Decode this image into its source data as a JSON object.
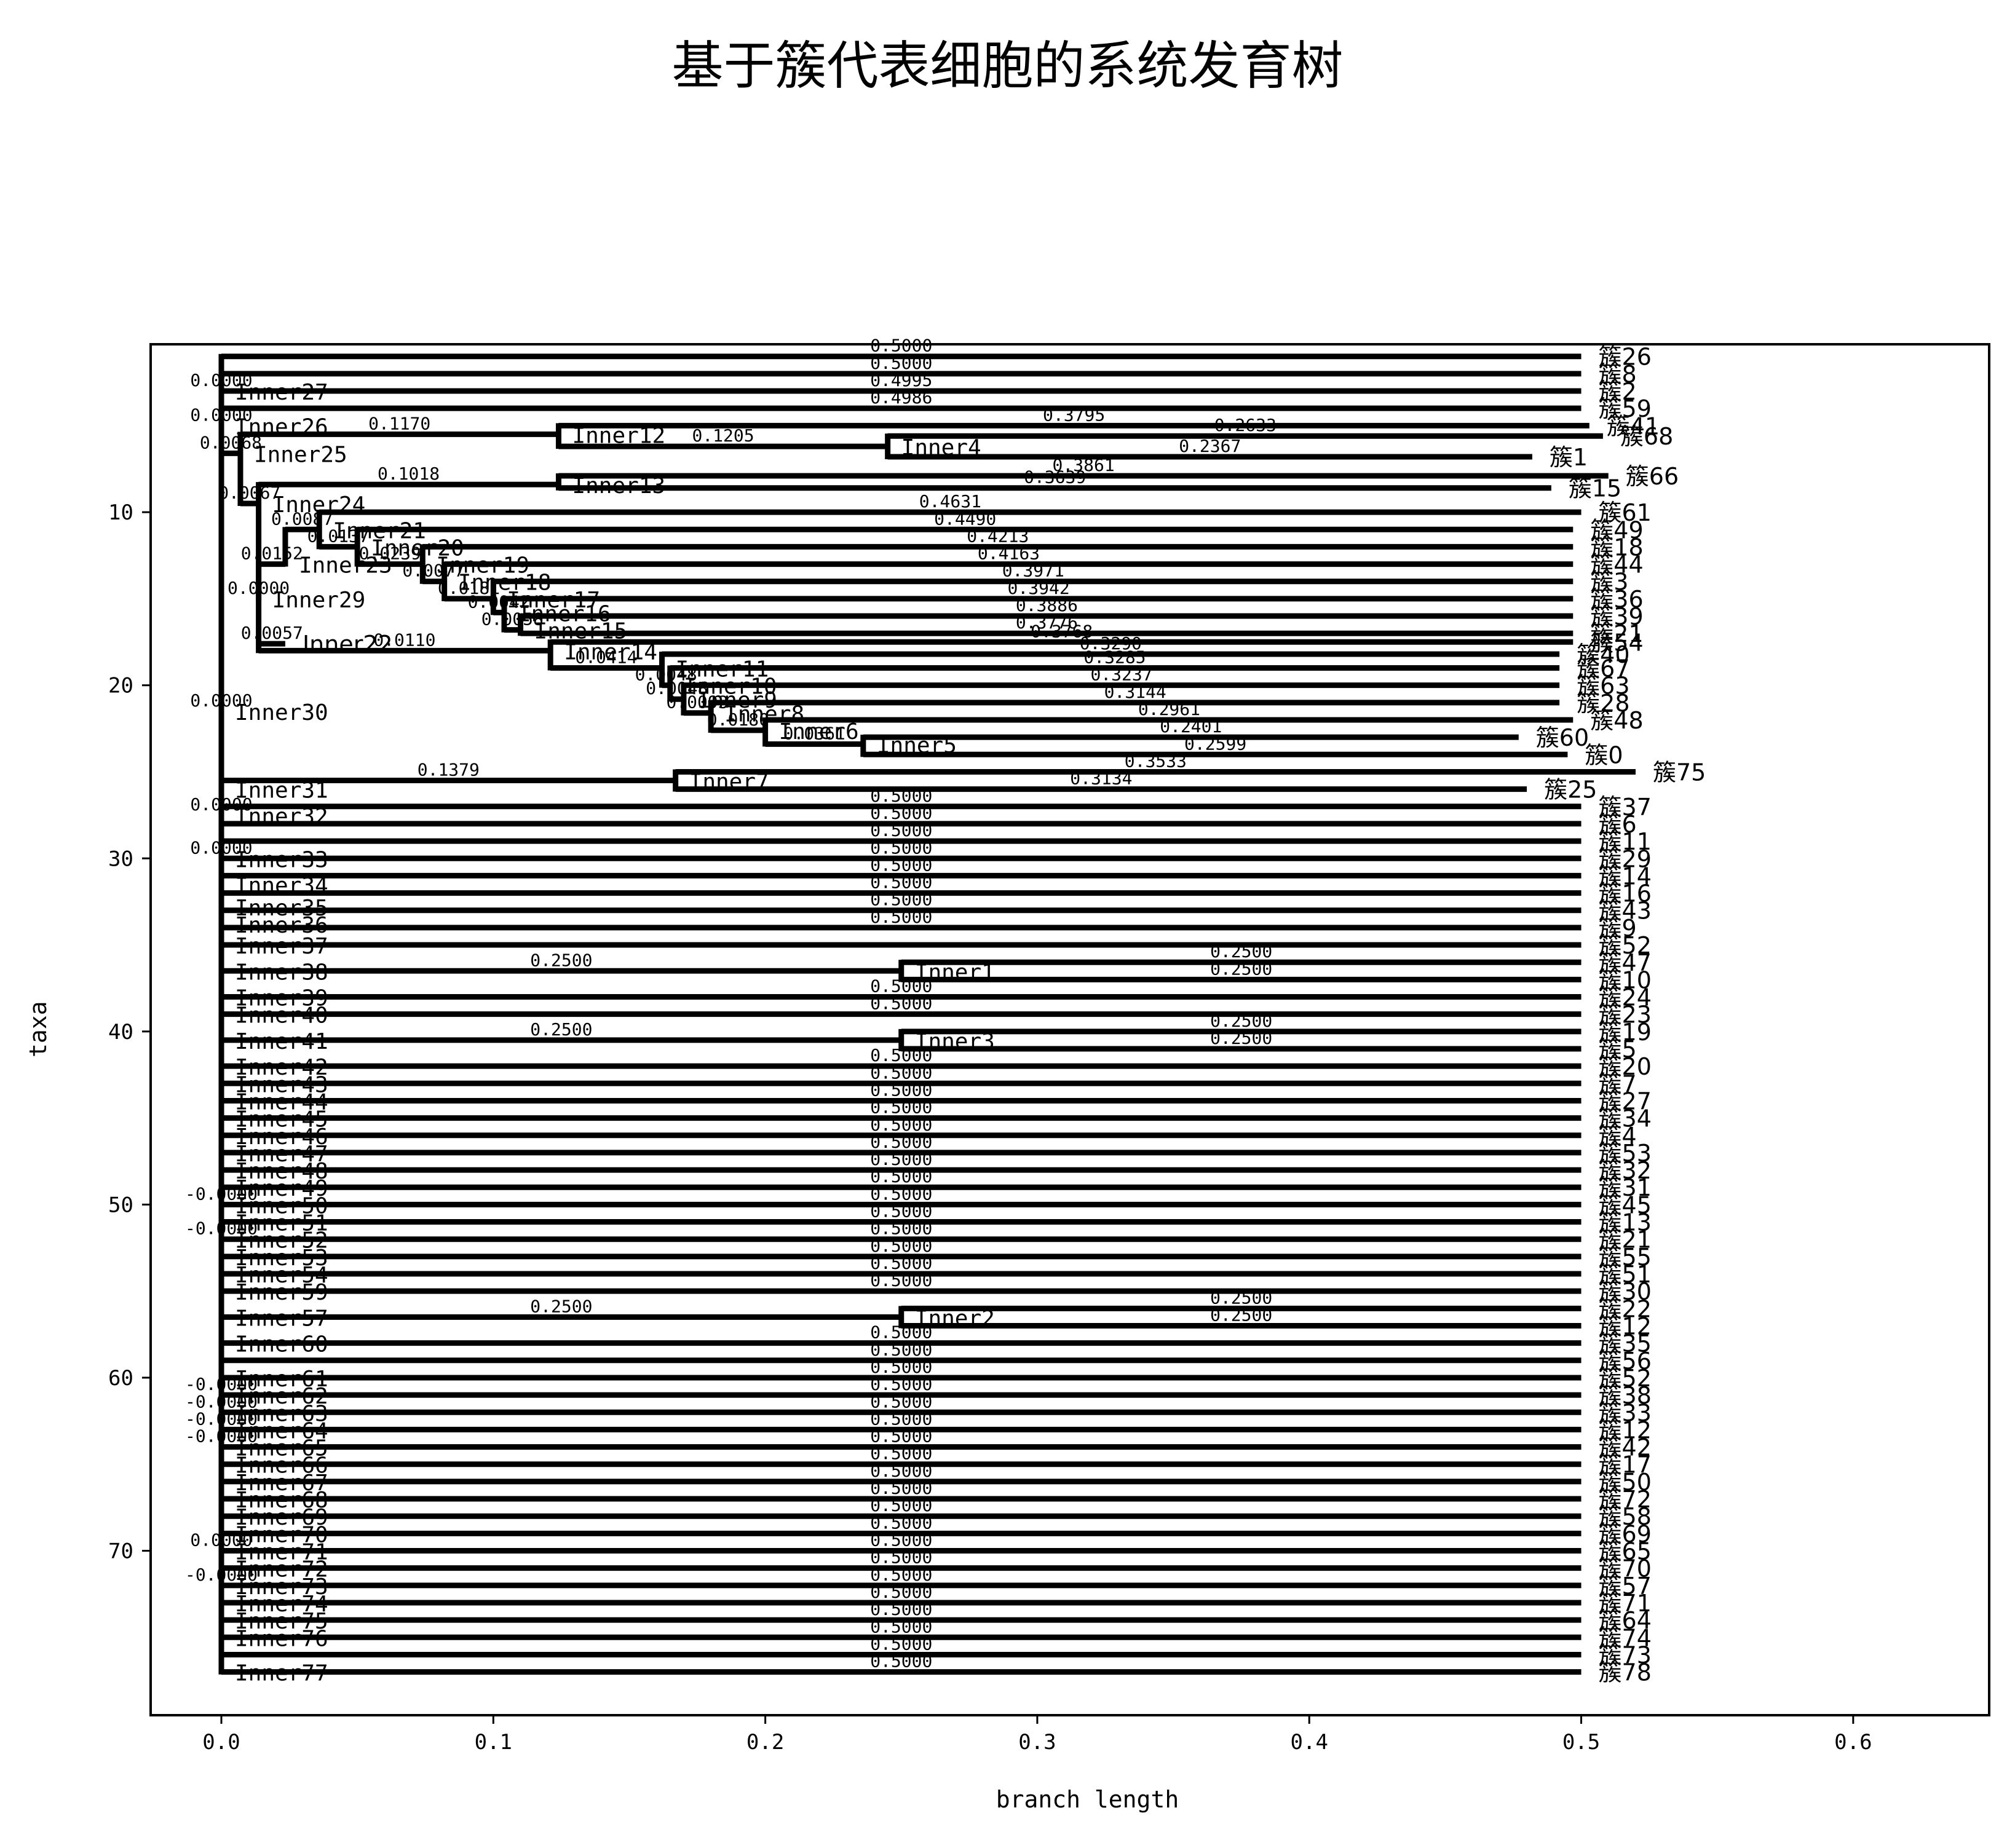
{
  "chart_data": {
    "type": "dendrogram",
    "title": "基于簇代表细胞的系统发育树",
    "xlabel": "branch length",
    "ylabel": "taxa",
    "xlim": [
      -0.026,
      0.65
    ],
    "ylim": [
      79.5,
      0.3
    ],
    "xticks": [
      "0.0",
      "0.1",
      "0.2",
      "0.3",
      "0.4",
      "0.5",
      "0.6"
    ],
    "yticks": [
      "10",
      "20",
      "30",
      "40",
      "50",
      "60",
      "70"
    ],
    "grid": false,
    "nodes": [
      {
        "label": "",
        "x": 0.0,
        "y": 1.0,
        "bl": "",
        "parent": null
      },
      {
        "label": "簇26",
        "x": 0.5,
        "y": 1.0,
        "bl": "0.5000",
        "parent": 0
      },
      {
        "label": "簇8",
        "x": 0.5,
        "y": 2.0,
        "bl": "0.5000",
        "parent": 0
      },
      {
        "label": "Inner27",
        "x": 0.0,
        "y": 3.0,
        "bl": "0.0000",
        "parent": 0
      },
      {
        "label": "簇2",
        "x": 0.5,
        "y": 3.0,
        "bl": "0.4995",
        "parent": 3
      },
      {
        "label": "Inner26",
        "x": 0.0,
        "y": 5.0,
        "bl": "0.0000",
        "parent": 3
      },
      {
        "label": "簇59",
        "x": 0.5,
        "y": 4.0,
        "bl": "0.4986",
        "parent": 5
      },
      {
        "label": "Inner25",
        "x": 0.007,
        "y": 6.6,
        "bl": "0.0068",
        "parent": 5
      },
      {
        "label": "Inner12",
        "x": 0.124,
        "y": 5.5,
        "bl": "0.1170",
        "parent": 7
      },
      {
        "label": "簇41",
        "x": 0.503,
        "y": 5.0,
        "bl": "0.3795",
        "parent": 8
      },
      {
        "label": "Inner4",
        "x": 0.245,
        "y": 6.2,
        "bl": "0.1205",
        "parent": 8
      },
      {
        "label": "簇68",
        "x": 0.508,
        "y": 5.6,
        "bl": "0.2633",
        "parent": 10
      },
      {
        "label": "簇1",
        "x": 0.482,
        "y": 6.8,
        "bl": "0.2367",
        "parent": 10
      },
      {
        "label": "Inner24",
        "x": 0.0137,
        "y": 9.5,
        "bl": "0.0067",
        "parent": 7
      },
      {
        "label": "Inner13",
        "x": 0.124,
        "y": 8.4,
        "bl": "0.1018",
        "parent": 13
      },
      {
        "label": "簇66",
        "x": 0.51,
        "y": 7.9,
        "bl": "0.3861",
        "parent": 14
      },
      {
        "label": "簇15",
        "x": 0.489,
        "y": 8.6,
        "bl": "0.3639",
        "parent": 14
      },
      {
        "label": "Inner29",
        "x": 0.0137,
        "y": 15.0,
        "bl": "0.0000",
        "parent": 13
      },
      {
        "label": "Inner22",
        "x": 0.0235,
        "y": 17.6,
        "bl": "0.0057",
        "parent": 17
      },
      {
        "label": "Inner23",
        "x": 0.0235,
        "y": 13.0,
        "bl": "0.0152",
        "parent": 17
      },
      {
        "label": "Inner21",
        "x": 0.036,
        "y": 11.0,
        "bl": "0.0087",
        "parent": 19
      },
      {
        "label": "簇61",
        "x": 0.5,
        "y": 10.0,
        "bl": "0.4631",
        "parent": 20
      },
      {
        "label": "Inner20",
        "x": 0.05,
        "y": 12.0,
        "bl": "0.0137",
        "parent": 20
      },
      {
        "label": "簇49",
        "x": 0.497,
        "y": 11.0,
        "bl": "0.4490",
        "parent": 22
      },
      {
        "label": "Inner19",
        "x": 0.074,
        "y": 13.0,
        "bl": "0.0239",
        "parent": 22
      },
      {
        "label": "簇18",
        "x": 0.497,
        "y": 12.0,
        "bl": "0.4213",
        "parent": 24
      },
      {
        "label": "Inner18",
        "x": 0.082,
        "y": 14.0,
        "bl": "0.0077",
        "parent": 24
      },
      {
        "label": "簇44",
        "x": 0.497,
        "y": 13.0,
        "bl": "0.4163",
        "parent": 26
      },
      {
        "label": "Inner17",
        "x": 0.1,
        "y": 15.0,
        "bl": "0.0181",
        "parent": 26
      },
      {
        "label": "簇3",
        "x": 0.497,
        "y": 14.0,
        "bl": "0.3971",
        "parent": 28
      },
      {
        "label": "Inner16",
        "x": 0.104,
        "y": 15.8,
        "bl": "0.0042",
        "parent": 28
      },
      {
        "label": "簇36",
        "x": 0.497,
        "y": 15.0,
        "bl": "0.3942",
        "parent": 30
      },
      {
        "label": "Inner15",
        "x": 0.11,
        "y": 16.8,
        "bl": "0.0058",
        "parent": 30
      },
      {
        "label": "簇39",
        "x": 0.497,
        "y": 16.0,
        "bl": "0.3886",
        "parent": 32
      },
      {
        "label": "簇21",
        "x": 0.497,
        "y": 17.0,
        "bl": "0.3776",
        "parent": 32
      },
      {
        "label": "Inner14",
        "x": 0.121,
        "y": 18.0,
        "bl": "0.0110",
        "parent": 17
      },
      {
        "label": "簇54",
        "x": 0.497,
        "y": 17.5,
        "bl": "0.3768",
        "parent": 35
      },
      {
        "label": "Inner11",
        "x": 0.162,
        "y": 19.0,
        "bl": "0.0414",
        "parent": 35
      },
      {
        "label": "簇40",
        "x": 0.492,
        "y": 18.2,
        "bl": "0.3290",
        "parent": 37
      },
      {
        "label": "Inner10",
        "x": 0.165,
        "y": 20.0,
        "bl": "0.0048",
        "parent": 37
      },
      {
        "label": "簇67",
        "x": 0.492,
        "y": 19.0,
        "bl": "0.3285",
        "parent": 39
      },
      {
        "label": "Inner9",
        "x": 0.17,
        "y": 20.8,
        "bl": "0.0048",
        "parent": 39
      },
      {
        "label": "簇63",
        "x": 0.492,
        "y": 20.0,
        "bl": "0.3237",
        "parent": 41
      },
      {
        "label": "Inner8",
        "x": 0.18,
        "y": 21.6,
        "bl": "0.0093",
        "parent": 41
      },
      {
        "label": "簇28",
        "x": 0.492,
        "y": 21.0,
        "bl": "0.3144",
        "parent": 43
      },
      {
        "label": "Inner6",
        "x": 0.2,
        "y": 22.6,
        "bl": "0.0180",
        "parent": 43
      },
      {
        "label": "簇48",
        "x": 0.497,
        "y": 22.0,
        "bl": "0.2961",
        "parent": 45
      },
      {
        "label": "Inner5",
        "x": 0.236,
        "y": 23.4,
        "bl": "0.0361",
        "parent": 45
      },
      {
        "label": "簇60",
        "x": 0.477,
        "y": 23.0,
        "bl": "0.2401",
        "parent": 47
      },
      {
        "label": "簇0",
        "x": 0.495,
        "y": 24.0,
        "bl": "0.2599",
        "parent": 47
      },
      {
        "label": "Inner30",
        "x": 0.0,
        "y": 21.5,
        "bl": "0.0000",
        "parent": 0
      },
      {
        "label": "Inner31",
        "x": 0.0,
        "y": 26.0,
        "bl": "",
        "parent": 50
      },
      {
        "label": "Inner7",
        "x": 0.167,
        "y": 25.5,
        "bl": "0.1379",
        "parent": 51
      },
      {
        "label": "簇75",
        "x": 0.52,
        "y": 25.0,
        "bl": "0.3533",
        "parent": 52
      },
      {
        "label": "簇25",
        "x": 0.48,
        "y": 26.0,
        "bl": "0.3134",
        "parent": 52
      },
      {
        "label": "Inner32",
        "x": 0.0,
        "y": 27.5,
        "bl": "0.0000",
        "parent": 0
      },
      {
        "label": "簇37",
        "x": 0.5,
        "y": 27.0,
        "bl": "0.5000",
        "parent": 55
      },
      {
        "label": "簇6",
        "x": 0.5,
        "y": 28.0,
        "bl": "0.5000",
        "parent": 55
      },
      {
        "label": "簇11",
        "x": 0.5,
        "y": 29.0,
        "bl": "0.5000",
        "parent": 0
      },
      {
        "label": "Inner33",
        "x": 0.0,
        "y": 30.0,
        "bl": "0.0000",
        "parent": 0
      },
      {
        "label": "簇29",
        "x": 0.5,
        "y": 30.0,
        "bl": "0.5000",
        "parent": 59
      },
      {
        "label": "簇14",
        "x": 0.5,
        "y": 31.0,
        "bl": "0.5000",
        "parent": 0
      },
      {
        "label": "Inner34",
        "x": 0.0,
        "y": 31.5,
        "bl": "",
        "parent": 0
      },
      {
        "label": "簇16",
        "x": 0.5,
        "y": 32.0,
        "bl": "0.5000",
        "parent": 62
      },
      {
        "label": "Inner35",
        "x": 0.0,
        "y": 32.8,
        "bl": "",
        "parent": 0
      },
      {
        "label": "簇43",
        "x": 0.5,
        "y": 33.0,
        "bl": "0.5000",
        "parent": 64
      },
      {
        "label": "Inner36",
        "x": 0.0,
        "y": 33.8,
        "bl": "",
        "parent": 0
      },
      {
        "label": "簇9",
        "x": 0.5,
        "y": 34.0,
        "bl": "0.5000",
        "parent": 66
      },
      {
        "label": "Inner37",
        "x": 0.0,
        "y": 35.0,
        "bl": "",
        "parent": 0
      },
      {
        "label": "簇52",
        "x": 0.5,
        "y": 35.0,
        "bl": "",
        "parent": 68
      },
      {
        "label": "Inner38",
        "x": 0.0,
        "y": 36.5,
        "bl": "",
        "parent": 0
      },
      {
        "label": "Inner1",
        "x": 0.25,
        "y": 36.5,
        "bl": "0.2500",
        "parent": 70
      },
      {
        "label": "簇47",
        "x": 0.5,
        "y": 36.0,
        "bl": "0.2500",
        "parent": 71
      },
      {
        "label": "簇10",
        "x": 0.5,
        "y": 37.0,
        "bl": "0.2500",
        "parent": 71
      },
      {
        "label": "Inner39",
        "x": 0.0,
        "y": 38.0,
        "bl": "",
        "parent": 0
      },
      {
        "label": "簇24",
        "x": 0.5,
        "y": 38.0,
        "bl": "0.5000",
        "parent": 74
      },
      {
        "label": "Inner40",
        "x": 0.0,
        "y": 39.0,
        "bl": "",
        "parent": 0
      },
      {
        "label": "簇23",
        "x": 0.5,
        "y": 39.0,
        "bl": "0.5000",
        "parent": 76
      },
      {
        "label": "Inner41",
        "x": 0.0,
        "y": 40.5,
        "bl": "",
        "parent": 0
      },
      {
        "label": "Inner3",
        "x": 0.25,
        "y": 40.5,
        "bl": "0.2500",
        "parent": 78
      },
      {
        "label": "簇19",
        "x": 0.5,
        "y": 40.0,
        "bl": "0.2500",
        "parent": 79
      },
      {
        "label": "簇5",
        "x": 0.5,
        "y": 41.0,
        "bl": "0.2500",
        "parent": 79
      },
      {
        "label": "Inner42",
        "x": 0.0,
        "y": 42.0,
        "bl": "",
        "parent": 0
      },
      {
        "label": "簇20",
        "x": 0.5,
        "y": 42.0,
        "bl": "0.5000",
        "parent": 82
      },
      {
        "label": "Inner43",
        "x": 0.0,
        "y": 43.0,
        "bl": "",
        "parent": 0
      },
      {
        "label": "簇7",
        "x": 0.5,
        "y": 43.0,
        "bl": "0.5000",
        "parent": 84
      },
      {
        "label": "Inner44",
        "x": 0.0,
        "y": 44.0,
        "bl": "",
        "parent": 0
      },
      {
        "label": "簇27",
        "x": 0.5,
        "y": 44.0,
        "bl": "0.5000",
        "parent": 86
      },
      {
        "label": "Inner45",
        "x": 0.0,
        "y": 45.0,
        "bl": "",
        "parent": 0
      },
      {
        "label": "簇34",
        "x": 0.5,
        "y": 45.0,
        "bl": "0.5000",
        "parent": 88
      },
      {
        "label": "Inner46",
        "x": 0.0,
        "y": 46.0,
        "bl": "",
        "parent": 0
      },
      {
        "label": "簇4",
        "x": 0.5,
        "y": 46.0,
        "bl": "0.5000",
        "parent": 90
      },
      {
        "label": "Inner47",
        "x": 0.0,
        "y": 47.0,
        "bl": "",
        "parent": 0
      },
      {
        "label": "簇53",
        "x": 0.5,
        "y": 47.0,
        "bl": "0.5000",
        "parent": 92
      },
      {
        "label": "Inner48",
        "x": 0.0,
        "y": 48.0,
        "bl": "",
        "parent": 0
      },
      {
        "label": "簇32",
        "x": 0.5,
        "y": 48.0,
        "bl": "0.5000",
        "parent": 94
      },
      {
        "label": "Inner49",
        "x": 0.0,
        "y": 49.0,
        "bl": "",
        "parent": 0
      },
      {
        "label": "簇31",
        "x": 0.5,
        "y": 49.0,
        "bl": "0.5000",
        "parent": 96
      },
      {
        "label": "Inner50",
        "x": 0.0,
        "y": 50.0,
        "bl": "-0.0000",
        "parent": 0
      },
      {
        "label": "簇45",
        "x": 0.5,
        "y": 50.0,
        "bl": "0.5000",
        "parent": 98
      },
      {
        "label": "Inner51",
        "x": 0.0,
        "y": 51.0,
        "bl": "",
        "parent": 0
      },
      {
        "label": "簇13",
        "x": 0.5,
        "y": 51.0,
        "bl": "0.5000",
        "parent": 100
      },
      {
        "label": "Inner52",
        "x": 0.0,
        "y": 52.0,
        "bl": "-0.0000",
        "parent": 0
      },
      {
        "label": "簇21",
        "x": 0.5,
        "y": 52.0,
        "bl": "0.5000",
        "parent": 102
      },
      {
        "label": "Inner53",
        "x": 0.0,
        "y": 53.0,
        "bl": "",
        "parent": 0
      },
      {
        "label": "簇55",
        "x": 0.5,
        "y": 53.0,
        "bl": "0.5000",
        "parent": 104
      },
      {
        "label": "Inner54",
        "x": 0.0,
        "y": 54.0,
        "bl": "",
        "parent": 0
      },
      {
        "label": "簇51",
        "x": 0.5,
        "y": 54.0,
        "bl": "0.5000",
        "parent": 106
      },
      {
        "label": "Inner59",
        "x": 0.0,
        "y": 55.0,
        "bl": "",
        "parent": 0
      },
      {
        "label": "簇30",
        "x": 0.5,
        "y": 55.0,
        "bl": "0.5000",
        "parent": 108
      },
      {
        "label": "Inner57",
        "x": 0.0,
        "y": 56.5,
        "bl": "",
        "parent": 0
      },
      {
        "label": "Inner2",
        "x": 0.25,
        "y": 56.5,
        "bl": "0.2500",
        "parent": 110
      },
      {
        "label": "簇22",
        "x": 0.5,
        "y": 56.0,
        "bl": "0.2500",
        "parent": 111
      },
      {
        "label": "簇12",
        "x": 0.5,
        "y": 57.0,
        "bl": "0.2500",
        "parent": 111
      },
      {
        "label": "Inner60",
        "x": 0.0,
        "y": 58.0,
        "bl": "",
        "parent": 0
      },
      {
        "label": "簇35",
        "x": 0.5,
        "y": 58.0,
        "bl": "0.5000",
        "parent": 114
      },
      {
        "label": "Inner61",
        "x": 0.0,
        "y": 60.0,
        "bl": "",
        "parent": 0
      },
      {
        "label": "簇56",
        "x": 0.5,
        "y": 59.0,
        "bl": "0.5000",
        "parent": 116
      },
      {
        "label": "Inner62",
        "x": 0.0,
        "y": 61.0,
        "bl": "-0.0000",
        "parent": 0
      },
      {
        "label": "簇52",
        "x": 0.5,
        "y": 60.0,
        "bl": "0.5000",
        "parent": 118
      },
      {
        "label": "Inner63",
        "x": 0.0,
        "y": 62.0,
        "bl": "-0.0000",
        "parent": 0
      },
      {
        "label": "簇38",
        "x": 0.5,
        "y": 61.0,
        "bl": "0.5000",
        "parent": 120
      },
      {
        "label": "Inner64",
        "x": 0.0,
        "y": 63.0,
        "bl": "-0.0000",
        "parent": 0
      },
      {
        "label": "簇33",
        "x": 0.5,
        "y": 62.0,
        "bl": "0.5000",
        "parent": 122
      },
      {
        "label": "Inner65",
        "x": 0.0,
        "y": 64.0,
        "bl": "-0.0000",
        "parent": 0
      },
      {
        "label": "簇12",
        "x": 0.5,
        "y": 63.0,
        "bl": "0.5000",
        "parent": 124
      },
      {
        "label": "Inner66",
        "x": 0.0,
        "y": 65.0,
        "bl": "",
        "parent": 0
      },
      {
        "label": "簇42",
        "x": 0.5,
        "y": 64.0,
        "bl": "0.5000",
        "parent": 126
      },
      {
        "label": "Inner67",
        "x": 0.0,
        "y": 66.0,
        "bl": "",
        "parent": 0
      },
      {
        "label": "簇17",
        "x": 0.5,
        "y": 65.0,
        "bl": "0.5000",
        "parent": 128
      },
      {
        "label": "Inner68",
        "x": 0.0,
        "y": 67.0,
        "bl": "",
        "parent": 0
      },
      {
        "label": "簇50",
        "x": 0.5,
        "y": 66.0,
        "bl": "0.5000",
        "parent": 130
      },
      {
        "label": "Inner69",
        "x": 0.0,
        "y": 68.0,
        "bl": "",
        "parent": 0
      },
      {
        "label": "簇72",
        "x": 0.5,
        "y": 67.0,
        "bl": "0.5000",
        "parent": 132
      },
      {
        "label": "Inner70",
        "x": 0.0,
        "y": 69.0,
        "bl": "",
        "parent": 0
      },
      {
        "label": "簇58",
        "x": 0.5,
        "y": 68.0,
        "bl": "0.5000",
        "parent": 134
      },
      {
        "label": "Inner71",
        "x": 0.0,
        "y": 70.0,
        "bl": "0.0000",
        "parent": 0
      },
      {
        "label": "簇69",
        "x": 0.5,
        "y": 69.0,
        "bl": "0.5000",
        "parent": 136
      },
      {
        "label": "Inner72",
        "x": 0.0,
        "y": 71.0,
        "bl": "",
        "parent": 0
      },
      {
        "label": "簇65",
        "x": 0.5,
        "y": 70.0,
        "bl": "0.5000",
        "parent": 138
      },
      {
        "label": "Inner73",
        "x": 0.0,
        "y": 72.0,
        "bl": "-0.0000",
        "parent": 0
      },
      {
        "label": "簇70",
        "x": 0.5,
        "y": 71.0,
        "bl": "0.5000",
        "parent": 140
      },
      {
        "label": "Inner74",
        "x": 0.0,
        "y": 73.0,
        "bl": "",
        "parent": 0
      },
      {
        "label": "簇57",
        "x": 0.5,
        "y": 72.0,
        "bl": "0.5000",
        "parent": 142
      },
      {
        "label": "Inner75",
        "x": 0.0,
        "y": 74.0,
        "bl": "",
        "parent": 0
      },
      {
        "label": "簇71",
        "x": 0.5,
        "y": 73.0,
        "bl": "0.5000",
        "parent": 144
      },
      {
        "label": "Inner76",
        "x": 0.0,
        "y": 75.0,
        "bl": "",
        "parent": 0
      },
      {
        "label": "簇64",
        "x": 0.5,
        "y": 74.0,
        "bl": "0.5000",
        "parent": 146
      },
      {
        "label": "Inner77",
        "x": 0.0,
        "y": 77.0,
        "bl": "",
        "parent": 0
      },
      {
        "label": "簇74",
        "x": 0.5,
        "y": 75.0,
        "bl": "0.5000",
        "parent": 148
      },
      {
        "label": "簇73",
        "x": 0.5,
        "y": 76.0,
        "bl": "0.5000",
        "parent": 148
      },
      {
        "label": "簇78",
        "x": 0.5,
        "y": 77.0,
        "bl": "0.5000",
        "parent": 148
      }
    ]
  }
}
